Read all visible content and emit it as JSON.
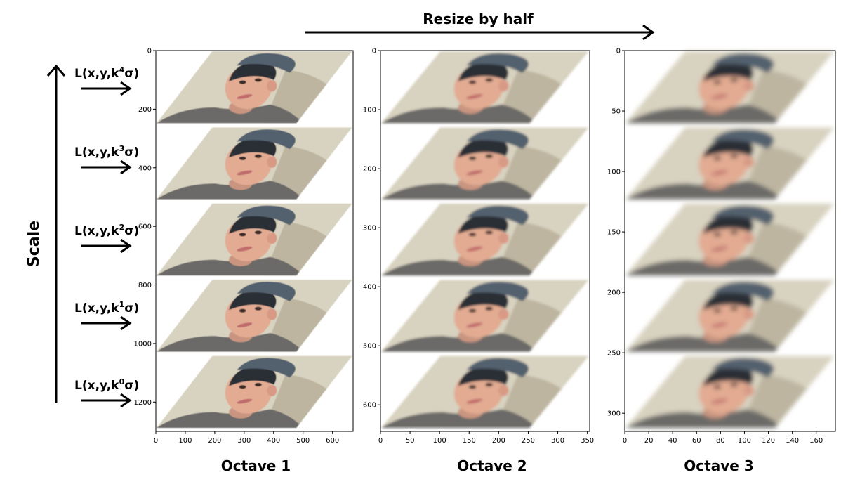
{
  "header": {
    "resize_label": "Resize by half"
  },
  "scale_axis": {
    "label": "Scale"
  },
  "levels": [
    {
      "base": "L(x,y,k",
      "exp": "4",
      "end": "σ)"
    },
    {
      "base": "L(x,y,k",
      "exp": "3",
      "end": "σ)"
    },
    {
      "base": "L(x,y,k",
      "exp": "2",
      "end": "σ)"
    },
    {
      "base": "L(x,y,k",
      "exp": "1",
      "end": "σ)"
    },
    {
      "base": "L(x,y,k",
      "exp": "0",
      "end": "σ)"
    }
  ],
  "octaves": [
    {
      "title": "Octave 1",
      "x_range": [
        0,
        670
      ],
      "y_range": [
        0,
        1300
      ],
      "x_ticks": [
        0,
        100,
        200,
        300,
        400,
        500,
        600
      ],
      "y_ticks": [
        0,
        200,
        400,
        600,
        800,
        1000,
        1200
      ],
      "tile_width": 436
    },
    {
      "title": "Octave 2",
      "x_range": [
        0,
        354
      ],
      "y_range": [
        0,
        645
      ],
      "x_ticks": [
        0,
        50,
        100,
        150,
        200,
        250,
        300,
        350
      ],
      "y_ticks": [
        0,
        100,
        200,
        300,
        400,
        500,
        600
      ],
      "tile_width": 237
    },
    {
      "title": "Octave 3",
      "x_range": [
        0,
        176
      ],
      "y_range": [
        0,
        315
      ],
      "x_ticks": [
        0,
        20,
        40,
        60,
        80,
        100,
        120,
        140,
        160
      ],
      "y_ticks": [
        0,
        50,
        100,
        150,
        200,
        250,
        300
      ],
      "tile_width": 118
    }
  ],
  "colors": {
    "wall": "#d8d2c0",
    "shadow": "#b8b09a",
    "shirt": "#6c6a68",
    "skin": "#e2ab92",
    "hair": "#2c2d36",
    "cap": "#52606e",
    "lips": "#c06c6c"
  }
}
